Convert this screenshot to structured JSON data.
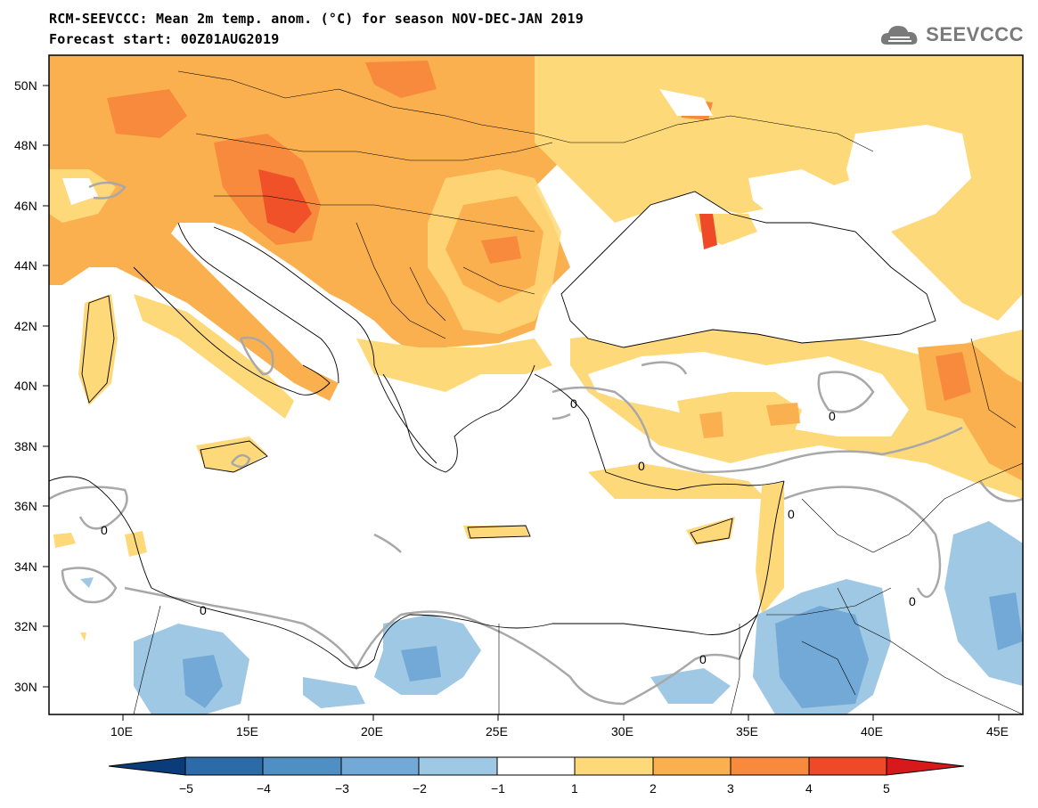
{
  "header": {
    "title_line1": "RCM-SEEVCCC: Mean 2m temp. anom. (°C) for season NOV-DEC-JAN 2019",
    "title_line2": "Forecast start: 00Z01AUG2019"
  },
  "logo": {
    "text": "SEEVCCC",
    "icon": "cloud-logo-icon"
  },
  "map": {
    "lat_labels": [
      "50N",
      "48N",
      "46N",
      "44N",
      "42N",
      "40N",
      "38N",
      "36N",
      "34N",
      "32N",
      "30N"
    ],
    "lon_labels": [
      "10E",
      "15E",
      "20E",
      "25E",
      "30E",
      "35E",
      "40E",
      "45E"
    ],
    "contour_label": "0"
  },
  "colorbar": {
    "labels": [
      "−5",
      "−4",
      "−3",
      "−2",
      "−1",
      "1",
      "2",
      "3",
      "4",
      "5"
    ],
    "colors": [
      "#0b3c7a",
      "#2d6aa8",
      "#4f8fc4",
      "#73a9d6",
      "#9fc8e4",
      "#ffffff",
      "#fed97a",
      "#fbb04f",
      "#f78a3c",
      "#ef4a27",
      "#d7191c"
    ]
  },
  "palette": {
    "anom_1_2": "#fed97a",
    "anom_2_3": "#fbb04f",
    "anom_3_4": "#f78a3c",
    "anom_4_5": "#ef4a27",
    "anom_m1_m2": "#9fc8e4",
    "anom_m2_m3": "#73a9d6",
    "zero_contour": "#a8a8a8"
  }
}
